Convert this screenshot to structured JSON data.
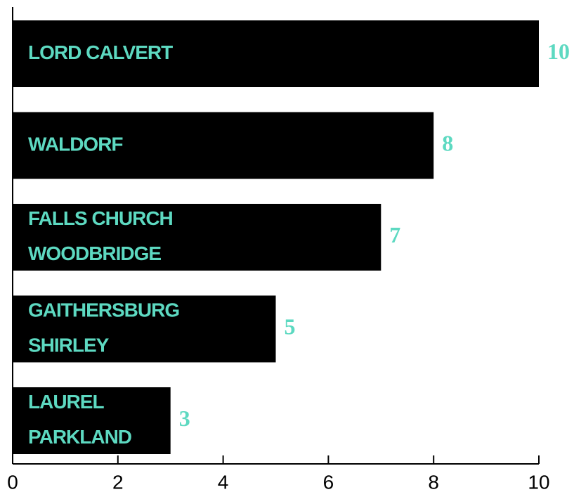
{
  "chart_data": {
    "type": "barh",
    "categories": [
      [
        "LORD CALVERT"
      ],
      [
        "WALDORF"
      ],
      [
        "FALLS CHURCH",
        "WOODBRIDGE"
      ],
      [
        "GAITHERSBURG",
        "SHIRLEY"
      ],
      [
        "LAUREL",
        "PARKLAND"
      ]
    ],
    "values": [
      10,
      8,
      7,
      5,
      3
    ],
    "color": "#000000",
    "label_color": "#5dd9c1",
    "xlim": [
      0,
      10
    ],
    "xticks": [
      0,
      2,
      4,
      6,
      8,
      10
    ]
  }
}
